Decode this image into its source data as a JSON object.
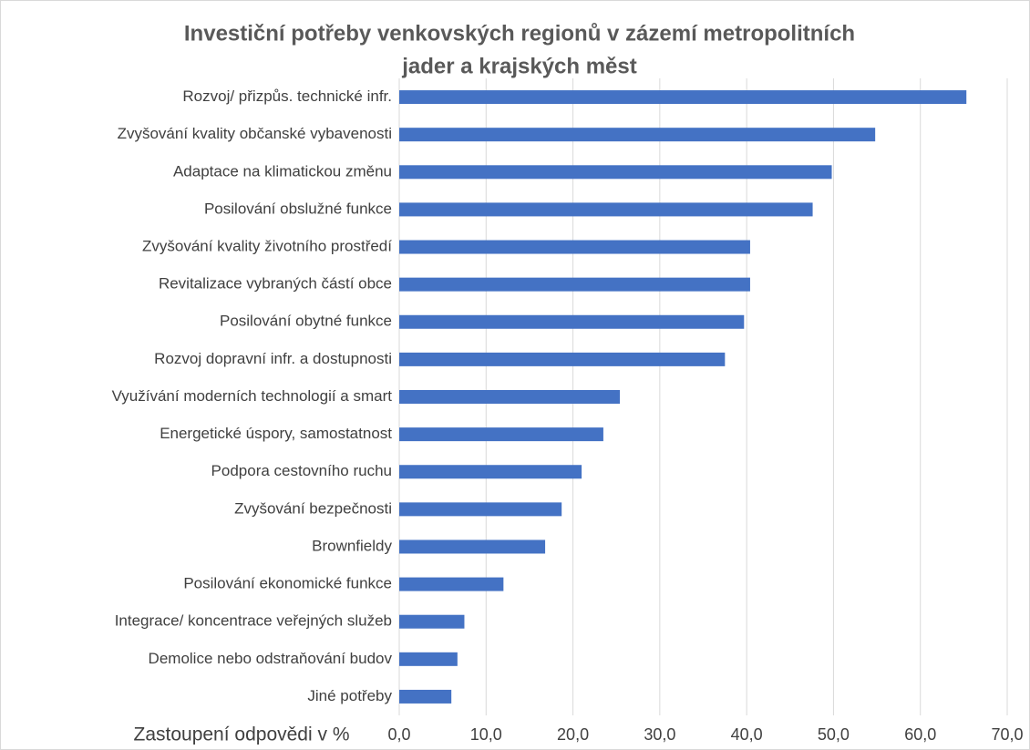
{
  "chart_data": {
    "type": "bar",
    "orientation": "horizontal",
    "title": [
      "Investiční potřeby venkovských regionů v zázemí metropolitních",
      "jader a krajských měst"
    ],
    "x_label": "Zastoupení odpovědi v %",
    "categories": [
      "Rozvoj/ přizpůs. technické infr.",
      "Zvyšování kvality občanské vybavenosti",
      "Adaptace na klimatickou změnu",
      "Posilování obslužné funkce",
      "Zvyšování kvality životního prostředí",
      "Revitalizace vybraných částí obce",
      "Posilování obytné funkce",
      "Rozvoj dopravní infr. a  dostupnosti",
      "Využívání moderních technologií a smart",
      "Energetické úspory, samostatnost",
      "Podpora cestovního ruchu",
      "Zvyšování bezpečnosti",
      "Brownfieldy ",
      "Posilování ekonomické funkce ",
      "Integrace/ koncentrace veřejných služeb",
      "Demolice nebo odstraňování budov",
      "Jiné potřeby"
    ],
    "values": [
      65.3,
      54.8,
      49.8,
      47.6,
      40.4,
      40.4,
      39.7,
      37.5,
      25.4,
      23.5,
      21.0,
      18.7,
      16.8,
      12.0,
      7.5,
      6.7,
      6.0
    ],
    "color": "#4472c4",
    "xlim": [
      0,
      70
    ],
    "xticks": [
      {
        "value": 0,
        "label": "0,0"
      },
      {
        "value": 10,
        "label": "10,0"
      },
      {
        "value": 20,
        "label": "20,0"
      },
      {
        "value": 30,
        "label": "30,0"
      },
      {
        "value": 40,
        "label": "40,0"
      },
      {
        "value": 50,
        "label": "50,0"
      },
      {
        "value": 60,
        "label": "60,0"
      },
      {
        "value": 70,
        "label": "70,0"
      }
    ],
    "grid": true
  }
}
